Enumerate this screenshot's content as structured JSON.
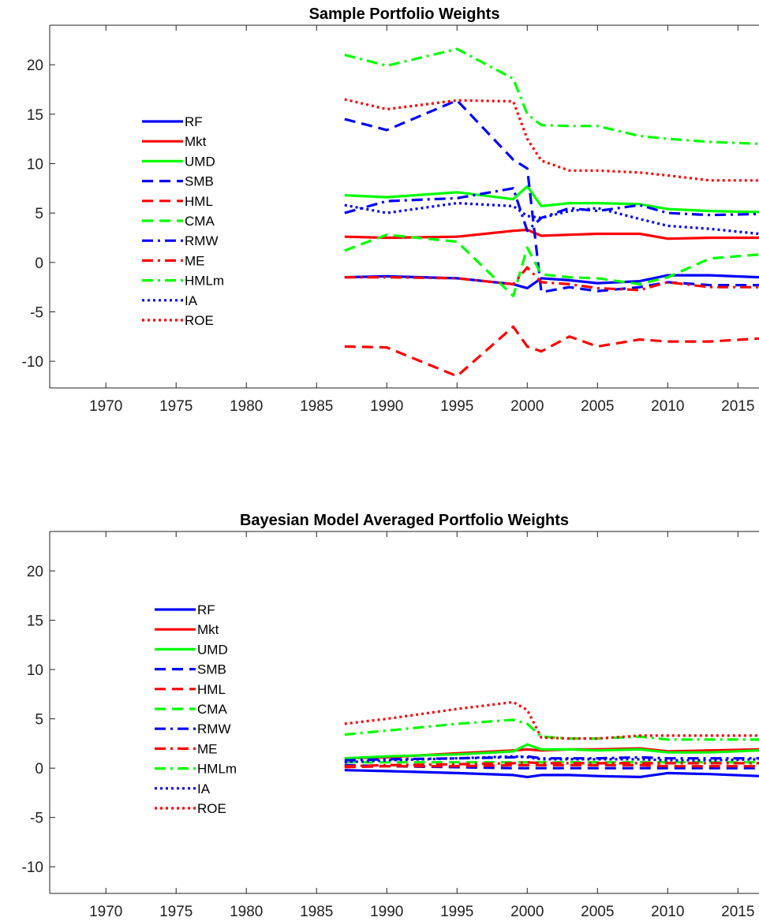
{
  "chart_data": [
    {
      "type": "line",
      "title": "Sample Portfolio Weights",
      "xlabel": "",
      "ylabel": "",
      "xlim": [
        1966,
        2016.5
      ],
      "ylim": [
        -12.7,
        24
      ],
      "xticks": [
        1970,
        1975,
        1980,
        1985,
        1990,
        1995,
        2000,
        2005,
        2010,
        2015
      ],
      "yticks": [
        -10,
        -5,
        0,
        5,
        10,
        15,
        20
      ],
      "grid": false,
      "legend": "left",
      "x": [
        1987,
        1990,
        1995,
        1999,
        2000,
        2001,
        2003,
        2005,
        2008,
        2010,
        2013,
        2016.5
      ],
      "series": [
        {
          "name": "RF",
          "color": "#0000ff",
          "dash": "solid",
          "values": [
            -1.5,
            -1.4,
            -1.6,
            -2.2,
            -2.6,
            -1.6,
            -1.8,
            -2.1,
            -1.9,
            -1.3,
            -1.3,
            -1.5
          ]
        },
        {
          "name": "Mkt",
          "color": "#ff0000",
          "dash": "solid",
          "values": [
            2.6,
            2.5,
            2.6,
            3.2,
            3.3,
            2.7,
            2.8,
            2.9,
            2.9,
            2.4,
            2.5,
            2.5
          ]
        },
        {
          "name": "UMD",
          "color": "#00ff00",
          "dash": "solid",
          "values": [
            6.8,
            6.6,
            7.1,
            6.4,
            7.7,
            5.7,
            6.0,
            6.0,
            5.9,
            5.4,
            5.2,
            5.1
          ]
        },
        {
          "name": "SMB",
          "color": "#0000ff",
          "dash": "dash",
          "values": [
            14.5,
            13.4,
            16.4,
            10.4,
            9.5,
            -3.0,
            -2.5,
            -2.9,
            -2.5,
            -2.0,
            -2.3,
            -2.3
          ]
        },
        {
          "name": "HML",
          "color": "#ff0000",
          "dash": "dash",
          "values": [
            -8.5,
            -8.6,
            -11.5,
            -6.5,
            -8.5,
            -9.0,
            -7.5,
            -8.5,
            -7.8,
            -8.0,
            -8.0,
            -7.7
          ]
        },
        {
          "name": "CMA",
          "color": "#00ff00",
          "dash": "dash",
          "values": [
            1.2,
            2.8,
            2.1,
            -3.4,
            1.5,
            -1.2,
            -1.5,
            -1.6,
            -2.2,
            -1.5,
            0.4,
            0.8
          ]
        },
        {
          "name": "RMW",
          "color": "#0000ff",
          "dash": "dashdot",
          "values": [
            5.0,
            6.2,
            6.5,
            7.5,
            3.2,
            4.5,
            5.5,
            5.2,
            5.8,
            5.0,
            4.8,
            4.9
          ]
        },
        {
          "name": "ME",
          "color": "#ff0000",
          "dash": "dashdot",
          "values": [
            -1.5,
            -1.5,
            -1.6,
            -2.2,
            -0.5,
            -2.0,
            -2.2,
            -2.6,
            -2.8,
            -2.0,
            -2.5,
            -2.5
          ]
        },
        {
          "name": "HMLm",
          "color": "#00ff00",
          "dash": "dashdot",
          "values": [
            21.0,
            19.9,
            21.6,
            18.6,
            15.0,
            13.9,
            13.8,
            13.8,
            12.8,
            12.5,
            12.2,
            12.0
          ]
        },
        {
          "name": "IA",
          "color": "#0000ff",
          "dash": "dot",
          "values": [
            5.8,
            5.0,
            6.0,
            5.7,
            4.7,
            4.5,
            5.2,
            5.5,
            4.4,
            3.7,
            3.4,
            2.9
          ]
        },
        {
          "name": "ROE",
          "color": "#ff0000",
          "dash": "dot",
          "values": [
            16.5,
            15.5,
            16.4,
            16.3,
            12.5,
            10.3,
            9.3,
            9.3,
            9.1,
            8.8,
            8.3,
            8.3
          ]
        }
      ]
    },
    {
      "type": "line",
      "title": "Bayesian Model Averaged Portfolio Weights",
      "xlabel": "",
      "ylabel": "",
      "xlim": [
        1966,
        2016.5
      ],
      "ylim": [
        -12.7,
        24
      ],
      "xticks": [
        1970,
        1975,
        1980,
        1985,
        1990,
        1995,
        2000,
        2005,
        2010,
        2015
      ],
      "yticks": [
        -10,
        -5,
        0,
        5,
        10,
        15,
        20
      ],
      "grid": false,
      "legend": "left",
      "x": [
        1987,
        1990,
        1995,
        1999,
        2000,
        2001,
        2003,
        2005,
        2008,
        2010,
        2013,
        2016.5
      ],
      "series": [
        {
          "name": "RF",
          "color": "#0000ff",
          "dash": "solid",
          "values": [
            -0.2,
            -0.3,
            -0.5,
            -0.7,
            -0.9,
            -0.7,
            -0.7,
            -0.8,
            -0.9,
            -0.5,
            -0.6,
            -0.8
          ]
        },
        {
          "name": "Mkt",
          "color": "#ff0000",
          "dash": "solid",
          "values": [
            1.0,
            1.1,
            1.5,
            1.8,
            1.9,
            1.8,
            1.9,
            1.9,
            2.0,
            1.7,
            1.8,
            1.9
          ]
        },
        {
          "name": "UMD",
          "color": "#00ff00",
          "dash": "solid",
          "values": [
            1.0,
            1.2,
            1.4,
            1.7,
            2.4,
            1.9,
            1.9,
            1.8,
            1.9,
            1.6,
            1.6,
            1.8
          ]
        },
        {
          "name": "SMB",
          "color": "#0000ff",
          "dash": "dash",
          "values": [
            0.3,
            0.2,
            0.1,
            0.0,
            0.0,
            0.0,
            0.0,
            0.0,
            0.0,
            0.0,
            0.0,
            0.0
          ]
        },
        {
          "name": "HML",
          "color": "#ff0000",
          "dash": "dash",
          "values": [
            0.1,
            0.2,
            0.2,
            0.3,
            0.3,
            0.3,
            0.3,
            0.3,
            0.3,
            0.2,
            0.2,
            0.2
          ]
        },
        {
          "name": "CMA",
          "color": "#00ff00",
          "dash": "dash",
          "values": [
            0.6,
            0.6,
            0.6,
            0.6,
            0.6,
            0.6,
            0.6,
            0.6,
            0.6,
            0.6,
            0.6,
            0.6
          ]
        },
        {
          "name": "RMW",
          "color": "#0000ff",
          "dash": "dashdot",
          "values": [
            0.8,
            0.9,
            1.0,
            1.1,
            1.2,
            1.0,
            1.0,
            1.0,
            1.1,
            1.0,
            1.0,
            1.0
          ]
        },
        {
          "name": "ME",
          "color": "#ff0000",
          "dash": "dashdot",
          "values": [
            0.2,
            0.3,
            0.4,
            0.5,
            0.6,
            0.5,
            0.5,
            0.5,
            0.5,
            0.5,
            0.5,
            0.5
          ]
        },
        {
          "name": "HMLm",
          "color": "#00ff00",
          "dash": "dashdot",
          "values": [
            3.4,
            3.8,
            4.5,
            4.9,
            4.5,
            3.2,
            3.0,
            3.0,
            3.2,
            2.9,
            2.9,
            2.9
          ]
        },
        {
          "name": "IA",
          "color": "#0000ff",
          "dash": "dot",
          "values": [
            0.6,
            0.8,
            1.0,
            1.2,
            1.1,
            0.9,
            0.9,
            0.9,
            0.9,
            0.8,
            0.8,
            0.9
          ]
        },
        {
          "name": "ROE",
          "color": "#ff0000",
          "dash": "dot",
          "values": [
            4.5,
            5.0,
            6.0,
            6.7,
            5.9,
            3.1,
            3.0,
            3.0,
            3.3,
            3.3,
            3.3,
            3.3
          ]
        }
      ]
    }
  ]
}
